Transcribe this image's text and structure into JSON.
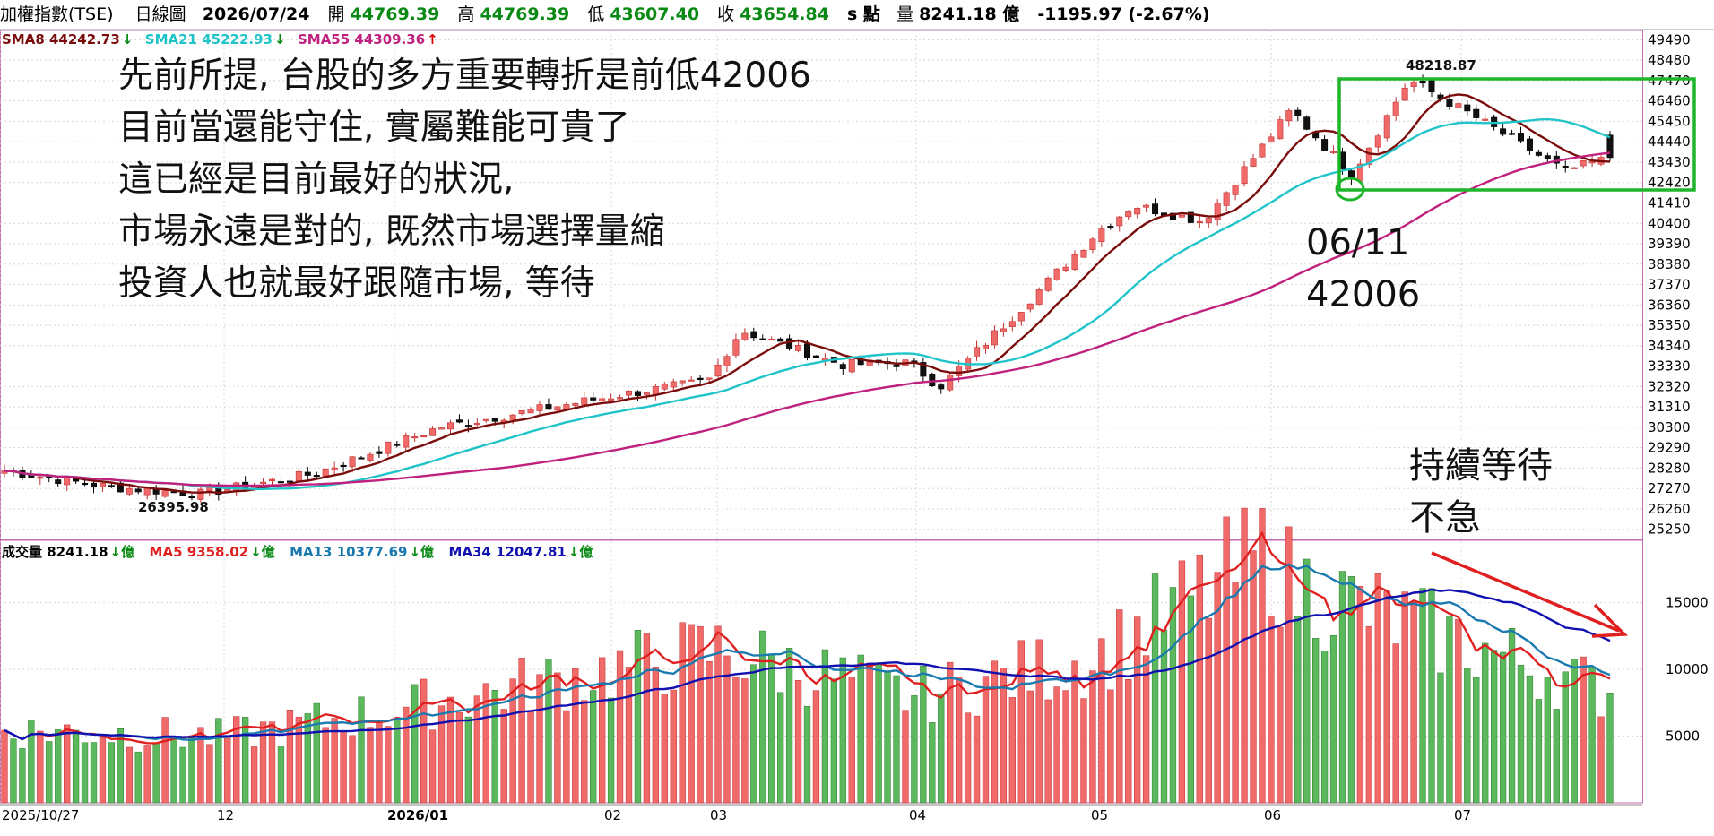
{
  "header": {
    "index_name": "加權指數(TSE)",
    "period": "日線圖",
    "date": "2026/07/24",
    "open_label": "開",
    "open": "44769.39",
    "high_label": "高",
    "high": "44769.39",
    "low_label": "低",
    "low": "43607.40",
    "close_label": "收",
    "close": "43654.84",
    "s_label": "s 點",
    "volume_label": "量",
    "volume": "8241.18 億",
    "change": "-1195.97 (-2.67%)"
  },
  "price_legend": [
    {
      "label": "SMA8 44242.73",
      "arrow": "↓",
      "color": "#7a0c0c"
    },
    {
      "label": "SMA21 45222.93",
      "arrow": "↓",
      "color": "#20c4c8"
    },
    {
      "label": "SMA55 44309.36",
      "arrow": "↑",
      "color": "#c0207e"
    }
  ],
  "volume_legend": [
    {
      "label": "成交量 8241.18",
      "arrow": "↓億",
      "color": "#000000"
    },
    {
      "label": "MA5 9358.02",
      "arrow": "↓億",
      "color": "#e02020"
    },
    {
      "label": "MA13 10377.69",
      "arrow": "↓億",
      "color": "#1a7ab0"
    },
    {
      "label": "MA34 12047.81",
      "arrow": "↓億",
      "color": "#1010b0"
    }
  ],
  "annotations": {
    "main_text": [
      "先前所提, 台股的多方重要轉折是前低42006",
      "目前當還能守住, 實屬難能可貴了",
      "這已經是目前最好的狀況,",
      "市場永遠是對的, 既然市場選擇量縮",
      "投資人也就最好跟隨市場,  等待"
    ],
    "low_label": "06/11",
    "low_value": "42006",
    "wait_text": [
      "持續等待",
      "不急"
    ],
    "peak_label": "48218.87",
    "trough_label": "26395.98"
  },
  "chart_data": [
    {
      "type": "candlestick",
      "title": "",
      "y_ticks": [
        49490,
        48480,
        47470,
        46460,
        45450,
        44440,
        43430,
        42420,
        41410,
        40400,
        39390,
        38380,
        37370,
        36360,
        35350,
        34340,
        33330,
        32320,
        31310,
        30300,
        29290,
        28280,
        27270,
        26260,
        25250
      ],
      "ylim": [
        24750,
        49950
      ],
      "x_ticks": [
        "2025/10/27",
        "12",
        "2026/01",
        "02",
        "03",
        "04",
        "05",
        "06",
        "07"
      ],
      "key_points": [
        {
          "date": "2025/10/27",
          "close": 28150
        },
        {
          "date": "2025/11 mid",
          "close": 27400
        },
        {
          "date": "2025/11/24",
          "low": 26395.98
        },
        {
          "date": "2025/12/01",
          "close": 27000
        },
        {
          "date": "2025/12/22",
          "close": 28000
        },
        {
          "date": "2026/01/06",
          "close": 30300
        },
        {
          "date": "2026/01/27",
          "close": 31900
        },
        {
          "date": "2026/02/10",
          "close": 32600
        },
        {
          "date": "2026/02/26",
          "close": 35100
        },
        {
          "date": "2026/03/06",
          "close": 33400
        },
        {
          "date": "2026/03/23",
          "close": 33500
        },
        {
          "date": "2026/04/01",
          "close": 32300
        },
        {
          "date": "2026/04/15",
          "close": 35800
        },
        {
          "date": "2026/05/04",
          "close": 40000
        },
        {
          "date": "2026/05/12",
          "close": 41300
        },
        {
          "date": "2026/05/20",
          "close": 40500
        },
        {
          "date": "2026/06/04",
          "close": 46000
        },
        {
          "date": "2026/06/11",
          "low": 42006
        },
        {
          "date": "2026/06/24",
          "high": 48218.87
        },
        {
          "date": "2026/07/07",
          "close": 45800
        },
        {
          "date": "2026/07/16",
          "close": 43000
        },
        {
          "date": "2026/07/24",
          "open": 44769.39,
          "high": 44769.39,
          "low": 43607.4,
          "close": 43654.84
        }
      ],
      "series": [
        {
          "name": "SMA8",
          "last": 44242.73
        },
        {
          "name": "SMA21",
          "last": 45222.93
        },
        {
          "name": "SMA55",
          "last": 44309.36
        }
      ]
    },
    {
      "type": "bar",
      "title": "",
      "unit": "億",
      "y_ticks": [
        15000,
        10000,
        5000
      ],
      "ylim": [
        0,
        19000
      ],
      "key_points": [
        {
          "date": "2025/10/27",
          "volume": 5500
        },
        {
          "date": "2025/12",
          "volume": 5000
        },
        {
          "date": "2026/01",
          "volume": 7000
        },
        {
          "date": "2026/02/26",
          "volume": 11500
        },
        {
          "date": "2026/04",
          "volume": 8000
        },
        {
          "date": "2026/05",
          "volume": 11000
        },
        {
          "date": "2026/06/02",
          "volume": 19000
        },
        {
          "date": "2026/06/24",
          "volume": 16500
        },
        {
          "date": "2026/07/24",
          "volume": 8241.18
        }
      ],
      "series": [
        {
          "name": "MA5",
          "last": 9358.02
        },
        {
          "name": "MA13",
          "last": 10377.69
        },
        {
          "name": "MA34",
          "last": 12047.81
        }
      ]
    }
  ],
  "colors": {
    "up": "#f06a6a",
    "down": "#111111",
    "vol_up": "#f06a6a",
    "vol_down": "#5cb85c",
    "box": "#1fb52b",
    "arrow": "#e02020"
  }
}
